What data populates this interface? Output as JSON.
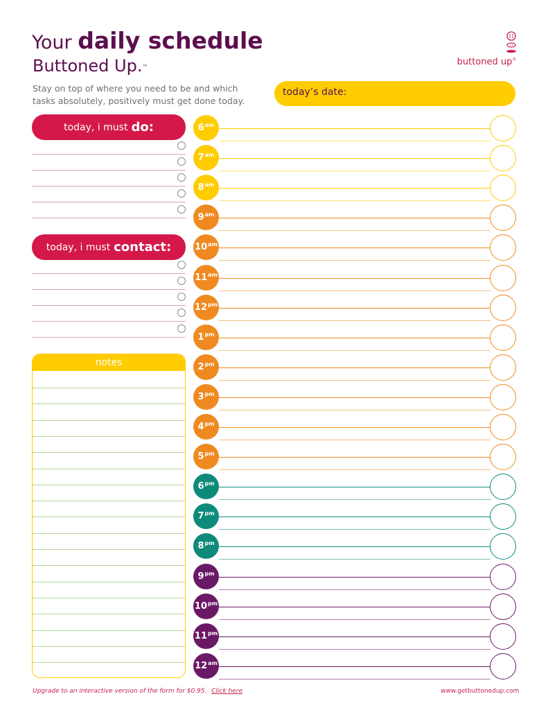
{
  "header": {
    "title_prefix": "Your",
    "title_main": "daily schedule",
    "subtitle": "Buttoned Up.",
    "subtitle_tm": "™",
    "tagline": "Stay on top of where you need to be and which tasks absolutely, positively must get done today."
  },
  "logo": {
    "text": "buttoned up",
    "reg": "®"
  },
  "date": {
    "label": "today’s date:"
  },
  "do_section": {
    "label": "today, i must",
    "emphasis": "do:",
    "rows": 5
  },
  "contact_section": {
    "label": "today, i must",
    "emphasis": "contact:",
    "rows": 5
  },
  "notes": {
    "label": "notes",
    "lines": 20
  },
  "schedule": [
    {
      "hour": "6",
      "period": "am",
      "color": "#ffcc00"
    },
    {
      "hour": "7",
      "period": "am",
      "color": "#ffcc00"
    },
    {
      "hour": "8",
      "period": "am",
      "color": "#ffcc00"
    },
    {
      "hour": "9",
      "period": "am",
      "color": "#ef8a21"
    },
    {
      "hour": "10",
      "period": "am",
      "color": "#ef8a21"
    },
    {
      "hour": "11",
      "period": "am",
      "color": "#ef8a21"
    },
    {
      "hour": "12",
      "period": "pm",
      "color": "#ef8a21"
    },
    {
      "hour": "1",
      "period": "pm",
      "color": "#ef8a21"
    },
    {
      "hour": "2",
      "period": "pm",
      "color": "#ef8a21"
    },
    {
      "hour": "3",
      "period": "pm",
      "color": "#ef8a21"
    },
    {
      "hour": "4",
      "period": "pm",
      "color": "#ef8a21"
    },
    {
      "hour": "5",
      "period": "pm",
      "color": "#ef8a21"
    },
    {
      "hour": "6",
      "period": "pm",
      "color": "#0e8a7a"
    },
    {
      "hour": "7",
      "period": "pm",
      "color": "#0e8a7a"
    },
    {
      "hour": "8",
      "period": "pm",
      "color": "#0e8a7a"
    },
    {
      "hour": "9",
      "period": "pm",
      "color": "#6a1966"
    },
    {
      "hour": "10",
      "period": "pm",
      "color": "#6a1966"
    },
    {
      "hour": "11",
      "period": "pm",
      "color": "#6a1966"
    },
    {
      "hour": "12",
      "period": "am",
      "color": "#6a1966"
    }
  ],
  "colors": {
    "accent": "#d4184a",
    "yellow": "#ffcc00",
    "plum": "#5c0f4e"
  },
  "footer": {
    "upgrade_text": "Upgrade to an interactive version of the form for $0.95.",
    "upgrade_link": "Click here",
    "website": "www.getbuttonedup.com"
  }
}
